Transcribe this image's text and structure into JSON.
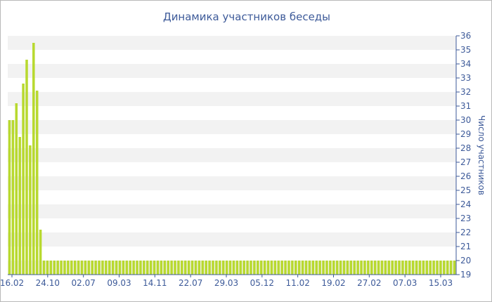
{
  "chart_data": {
    "type": "bar",
    "title": "Динамика участников беседы",
    "xlabel": "",
    "ylabel": "Число участников",
    "ylim": [
      19,
      36
    ],
    "y_ticks": [
      "19",
      "20",
      "21",
      "22",
      "23",
      "24",
      "25",
      "26",
      "27",
      "28",
      "29",
      "30",
      "31",
      "32",
      "33",
      "34",
      "35",
      "36"
    ],
    "x_tick_labels": [
      "16.02",
      "24.10",
      "02.07",
      "09.03",
      "14.11",
      "22.07",
      "29.03",
      "05.12",
      "11.02",
      "19.02",
      "27.02",
      "07.03",
      "15.03"
    ],
    "values": [
      30,
      30,
      31.2,
      28.8,
      32.6,
      34.3,
      28.2,
      35.5,
      32.1,
      22.2,
      20,
      20,
      20,
      20,
      20,
      20,
      20,
      20,
      20,
      20,
      20,
      20,
      20,
      20,
      20,
      20,
      20,
      20,
      20,
      20,
      20,
      20,
      20,
      20,
      20,
      20,
      20,
      20,
      20,
      20,
      20,
      20,
      20,
      20,
      20,
      20,
      20,
      20,
      20,
      20,
      20,
      20,
      20,
      20,
      20,
      20,
      20,
      20,
      20,
      20,
      20,
      20,
      20,
      20,
      20,
      20,
      20,
      20,
      20,
      20,
      20,
      20,
      20,
      20,
      20,
      20,
      20,
      20,
      20,
      20,
      20,
      20,
      20,
      20,
      20,
      20,
      20,
      20,
      20,
      20,
      20,
      20,
      20,
      20,
      20,
      20,
      20,
      20,
      20,
      20,
      20,
      20,
      20,
      20,
      20,
      20,
      20,
      20,
      20,
      20,
      20,
      20,
      20,
      20,
      20,
      20,
      20,
      20,
      20,
      20,
      20,
      20,
      20,
      20,
      20,
      20,
      20,
      20,
      20,
      20
    ],
    "colors": {
      "bar": "#b8d92f",
      "bar_edge": "#a4c41f",
      "band": "#f2f2f2",
      "axis": "#3d5a99",
      "text": "#3d5a99"
    },
    "grid": "alternating horizontal bands"
  }
}
